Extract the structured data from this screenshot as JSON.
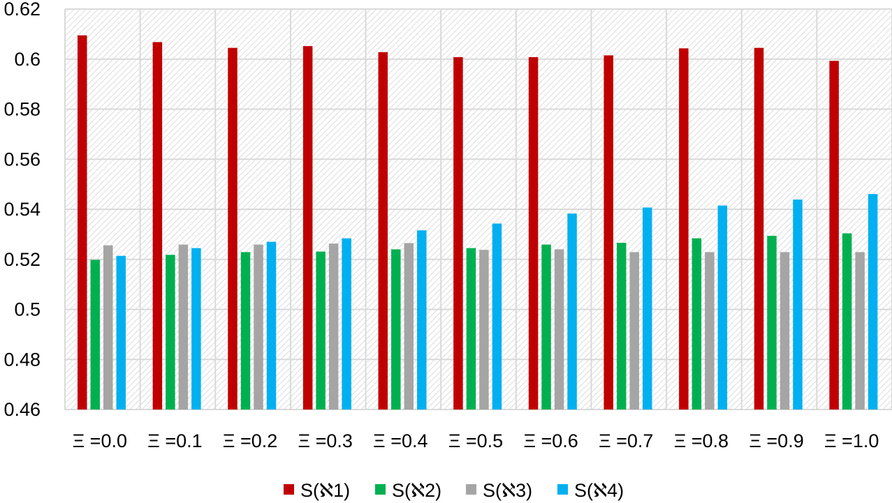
{
  "chart_data": {
    "type": "bar",
    "title": "",
    "xlabel": "",
    "ylabel": "",
    "ylim": [
      0.46,
      0.62
    ],
    "y_ticks": [
      "0.46",
      "0.48",
      "0.5",
      "0.52",
      "0.54",
      "0.56",
      "0.58",
      "0.6",
      "0.62"
    ],
    "grid": true,
    "legend_position": "bottom",
    "categories": [
      "Ξ =0.0",
      "Ξ =0.1",
      "Ξ =0.2",
      "Ξ =0.3",
      "Ξ =0.4",
      "Ξ =0.5",
      "Ξ =0.6",
      "Ξ =0.7",
      "Ξ =0.8",
      "Ξ =0.9",
      "Ξ =1.0"
    ],
    "series": [
      {
        "name": "S(ℵ1)",
        "color": "#C00000",
        "values": [
          0.6095,
          0.6068,
          0.6045,
          0.6052,
          0.6028,
          0.6008,
          0.6008,
          0.6015,
          0.6043,
          0.6045,
          0.5993
        ]
      },
      {
        "name": "S(ℵ2)",
        "color": "#00B050",
        "values": [
          0.5198,
          0.5218,
          0.5229,
          0.5231,
          0.524,
          0.5245,
          0.5259,
          0.5266,
          0.5284,
          0.5294,
          0.5304
        ]
      },
      {
        "name": "S(ℵ3)",
        "color": "#A5A5A5",
        "values": [
          0.5256,
          0.5259,
          0.5259,
          0.5263,
          0.5265,
          0.5238,
          0.524,
          0.5229,
          0.5229,
          0.5229,
          0.5229
        ]
      },
      {
        "name": "S(ℵ4)",
        "color": "#00B0F0",
        "values": [
          0.5214,
          0.5245,
          0.527,
          0.5284,
          0.5316,
          0.5343,
          0.5383,
          0.5407,
          0.5415,
          0.5439,
          0.5461
        ]
      }
    ]
  }
}
